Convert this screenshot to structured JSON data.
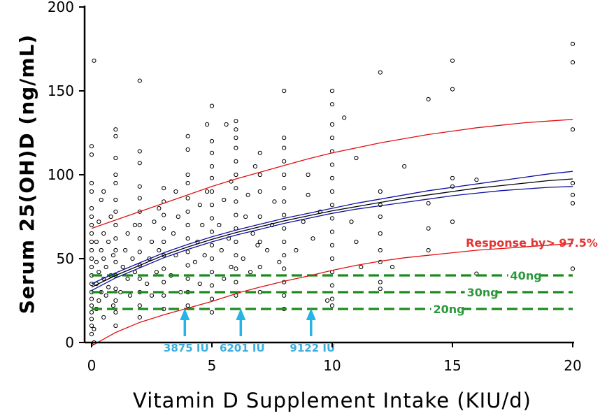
{
  "chart_data": {
    "type": "scatter",
    "xlabel": "Vitamin D Supplement Intake (KIU/d)",
    "ylabel": "Serum 25(OH)D (ng/mL)",
    "xlim": [
      0,
      20
    ],
    "ylim": [
      0,
      200
    ],
    "x_ticks": [
      0,
      5,
      10,
      15,
      20
    ],
    "y_ticks": [
      0,
      50,
      100,
      150,
      200
    ],
    "colors": {
      "points": "#000000",
      "fit": "#000000",
      "confidence": "#1010a0",
      "prediction": "#e01010",
      "threshold": "#1e8a1e",
      "arrows": "#26b4e6",
      "iu_text": "#3aaee0",
      "ng_text": "#2b9a3b",
      "response_text": "#e53232"
    },
    "series": [
      {
        "name": "Fitted mean response",
        "kind": "line",
        "x": [
          0,
          1,
          2,
          3,
          4,
          5,
          6,
          7,
          8,
          9,
          10,
          11,
          12,
          13,
          14,
          15,
          16,
          17,
          18,
          19,
          20
        ],
        "y": [
          33,
          40,
          46,
          52,
          57,
          61.5,
          65.5,
          69,
          72.5,
          75.5,
          78.5,
          81,
          83.5,
          86,
          88,
          90,
          92,
          93.5,
          95,
          96.5,
          97.5
        ]
      },
      {
        "name": "Upper confidence limit",
        "kind": "line",
        "x": [
          0,
          1,
          2,
          3,
          4,
          5,
          6,
          7,
          8,
          9,
          10,
          11,
          12,
          13,
          14,
          15,
          16,
          17,
          18,
          19,
          20
        ],
        "y": [
          35,
          41.5,
          47.5,
          53.5,
          58.5,
          63,
          67,
          70.5,
          74,
          77,
          80,
          83,
          85.5,
          88,
          90.5,
          92.5,
          94.5,
          96.5,
          98.5,
          100.5,
          102
        ]
      },
      {
        "name": "Lower confidence limit",
        "kind": "line",
        "x": [
          0,
          1,
          2,
          3,
          4,
          5,
          6,
          7,
          8,
          9,
          10,
          11,
          12,
          13,
          14,
          15,
          16,
          17,
          18,
          19,
          20
        ],
        "y": [
          31,
          38.5,
          44.5,
          50.5,
          55.5,
          60,
          64,
          67.5,
          71,
          74,
          77,
          79.5,
          81.5,
          83.5,
          85.5,
          87.5,
          89,
          90.5,
          91.5,
          92.5,
          93
        ]
      },
      {
        "name": "Upper prediction limit",
        "kind": "line",
        "x": [
          0,
          1,
          2,
          3,
          4,
          5,
          6,
          7,
          8,
          9,
          10,
          11,
          12,
          13,
          14,
          15,
          16,
          17,
          18,
          19,
          20
        ],
        "y": [
          68,
          73,
          78,
          83,
          88,
          93,
          97.5,
          101.5,
          105.5,
          109.5,
          113,
          116,
          119,
          121.5,
          124,
          126,
          128,
          129.5,
          131,
          132,
          133
        ]
      },
      {
        "name": "Lower prediction limit (Response by > 97.5%)",
        "kind": "line",
        "x": [
          0,
          1,
          2,
          3,
          3.875,
          5,
          6.201,
          7,
          8,
          9.122,
          10,
          11,
          12,
          13,
          14,
          15,
          16,
          17,
          18,
          19,
          20
        ],
        "y": [
          -2,
          6,
          12,
          16.5,
          20,
          24.5,
          30,
          33,
          36.5,
          40,
          43,
          46,
          48.5,
          50.5,
          52,
          53.5,
          55,
          56,
          57,
          58,
          59
        ]
      },
      {
        "name": "Observed serum 25(OH)D",
        "kind": "scatter",
        "points": [
          [
            0,
            5
          ],
          [
            0,
            10
          ],
          [
            0,
            14
          ],
          [
            0,
            18
          ],
          [
            0,
            22
          ],
          [
            0,
            26
          ],
          [
            0,
            30
          ],
          [
            0,
            35
          ],
          [
            0,
            40
          ],
          [
            0,
            45
          ],
          [
            0,
            50
          ],
          [
            0,
            55
          ],
          [
            0,
            60
          ],
          [
            0,
            65
          ],
          [
            0,
            70
          ],
          [
            0,
            75
          ],
          [
            0,
            80
          ],
          [
            0,
            90
          ],
          [
            0,
            95
          ],
          [
            0,
            112
          ],
          [
            0,
            117
          ],
          [
            0.1,
            168
          ],
          [
            0.1,
            8
          ],
          [
            0.1,
            0
          ],
          [
            0.2,
            20
          ],
          [
            0.2,
            35
          ],
          [
            0.2,
            48
          ],
          [
            0.2,
            60
          ],
          [
            0.3,
            25
          ],
          [
            0.3,
            42
          ],
          [
            0.3,
            72
          ],
          [
            0.4,
            30
          ],
          [
            0.4,
            55
          ],
          [
            0.4,
            85
          ],
          [
            0.5,
            15
          ],
          [
            0.5,
            38
          ],
          [
            0.5,
            50
          ],
          [
            0.5,
            65
          ],
          [
            0.5,
            90
          ],
          [
            0.6,
            28
          ],
          [
            0.6,
            45
          ],
          [
            0.7,
            33
          ],
          [
            0.7,
            60
          ],
          [
            0.8,
            40
          ],
          [
            0.8,
            75
          ],
          [
            0.9,
            22
          ],
          [
            0.9,
            52
          ],
          [
            1,
            10
          ],
          [
            1,
            18
          ],
          [
            1,
            25
          ],
          [
            1,
            32
          ],
          [
            1,
            40
          ],
          [
            1,
            48
          ],
          [
            1,
            55
          ],
          [
            1,
            62
          ],
          [
            1,
            70
          ],
          [
            1,
            78
          ],
          [
            1,
            85
          ],
          [
            1,
            95
          ],
          [
            1,
            100
          ],
          [
            1,
            110
          ],
          [
            1,
            123
          ],
          [
            1,
            127
          ],
          [
            1.2,
            30
          ],
          [
            1.3,
            45
          ],
          [
            1.4,
            55
          ],
          [
            1.5,
            38
          ],
          [
            1.5,
            65
          ],
          [
            1.6,
            28
          ],
          [
            1.7,
            50
          ],
          [
            1.8,
            42
          ],
          [
            1.8,
            70
          ],
          [
            2,
            15
          ],
          [
            2,
            22
          ],
          [
            2,
            30
          ],
          [
            2,
            38
          ],
          [
            2,
            46
          ],
          [
            2,
            54
          ],
          [
            2,
            62
          ],
          [
            2,
            70
          ],
          [
            2,
            78
          ],
          [
            2,
            86
          ],
          [
            2,
            93
          ],
          [
            2,
            107
          ],
          [
            2,
            114
          ],
          [
            2,
            156
          ],
          [
            2.3,
            35
          ],
          [
            2.4,
            50
          ],
          [
            2.5,
            28
          ],
          [
            2.5,
            60
          ],
          [
            2.6,
            72
          ],
          [
            2.7,
            42
          ],
          [
            2.8,
            55
          ],
          [
            2.8,
            80
          ],
          [
            3,
            20
          ],
          [
            3,
            28
          ],
          [
            3,
            36
          ],
          [
            3,
            44
          ],
          [
            3,
            52
          ],
          [
            3,
            60
          ],
          [
            3,
            68
          ],
          [
            3,
            76
          ],
          [
            3,
            84
          ],
          [
            3,
            92
          ],
          [
            3.3,
            40
          ],
          [
            3.4,
            65
          ],
          [
            3.5,
            52
          ],
          [
            3.5,
            90
          ],
          [
            3.6,
            75
          ],
          [
            3.7,
            30
          ],
          [
            4,
            22
          ],
          [
            4,
            30
          ],
          [
            4,
            38
          ],
          [
            4,
            46
          ],
          [
            4,
            54
          ],
          [
            4,
            62
          ],
          [
            4,
            70
          ],
          [
            4,
            78
          ],
          [
            4,
            86
          ],
          [
            4,
            95
          ],
          [
            4,
            100
          ],
          [
            4,
            115
          ],
          [
            4,
            123
          ],
          [
            4.3,
            48
          ],
          [
            4.4,
            60
          ],
          [
            4.5,
            35
          ],
          [
            4.5,
            82
          ],
          [
            4.6,
            70
          ],
          [
            4.7,
            52
          ],
          [
            4.8,
            90
          ],
          [
            4.8,
            130
          ],
          [
            5,
            18
          ],
          [
            5,
            26
          ],
          [
            5,
            34
          ],
          [
            5,
            42
          ],
          [
            5,
            50
          ],
          [
            5,
            58
          ],
          [
            5,
            66
          ],
          [
            5,
            74
          ],
          [
            5,
            82
          ],
          [
            5,
            90
          ],
          [
            5,
            98
          ],
          [
            5,
            105
          ],
          [
            5,
            113
          ],
          [
            5,
            120
          ],
          [
            5,
            141
          ],
          [
            5.3,
            70
          ],
          [
            5.4,
            55
          ],
          [
            5.5,
            38
          ],
          [
            5.5,
            85
          ],
          [
            5.6,
            130
          ],
          [
            5.7,
            62
          ],
          [
            5.8,
            96
          ],
          [
            5.8,
            45
          ],
          [
            6,
            28
          ],
          [
            6,
            36
          ],
          [
            6,
            44
          ],
          [
            6,
            52
          ],
          [
            6,
            60
          ],
          [
            6,
            68
          ],
          [
            6,
            76
          ],
          [
            6,
            84
          ],
          [
            6,
            92
          ],
          [
            6,
            100
          ],
          [
            6,
            108
          ],
          [
            6,
            116
          ],
          [
            6,
            122
          ],
          [
            6,
            127
          ],
          [
            6,
            132
          ],
          [
            6.3,
            50
          ],
          [
            6.4,
            75
          ],
          [
            6.5,
            88
          ],
          [
            6.6,
            42
          ],
          [
            6.7,
            65
          ],
          [
            6.8,
            105
          ],
          [
            6.9,
            58
          ],
          [
            7,
            30
          ],
          [
            7,
            45
          ],
          [
            7,
            60
          ],
          [
            7,
            75
          ],
          [
            7,
            90
          ],
          [
            7,
            100
          ],
          [
            7,
            113
          ],
          [
            7.3,
            55
          ],
          [
            7.5,
            70
          ],
          [
            7.6,
            84
          ],
          [
            7.8,
            48
          ],
          [
            8,
            20
          ],
          [
            8,
            28
          ],
          [
            8,
            36
          ],
          [
            8,
            44
          ],
          [
            8,
            52
          ],
          [
            8,
            60
          ],
          [
            8,
            68
          ],
          [
            8,
            76
          ],
          [
            8,
            84
          ],
          [
            8,
            92
          ],
          [
            8,
            100
          ],
          [
            8,
            108
          ],
          [
            8,
            116
          ],
          [
            8,
            122
          ],
          [
            8,
            150
          ],
          [
            8.5,
            55
          ],
          [
            8.8,
            72
          ],
          [
            9,
            88
          ],
          [
            9,
            100
          ],
          [
            9.2,
            62
          ],
          [
            9.5,
            78
          ],
          [
            9.8,
            25
          ],
          [
            10,
            22
          ],
          [
            10,
            26
          ],
          [
            10,
            34
          ],
          [
            10,
            42
          ],
          [
            10,
            50
          ],
          [
            10,
            58
          ],
          [
            10,
            66
          ],
          [
            10,
            74
          ],
          [
            10,
            82
          ],
          [
            10,
            90
          ],
          [
            10,
            98
          ],
          [
            10,
            106
          ],
          [
            10,
            114
          ],
          [
            10,
            122
          ],
          [
            10,
            130
          ],
          [
            10,
            142
          ],
          [
            10,
            150
          ],
          [
            10.5,
            134
          ],
          [
            10.8,
            72
          ],
          [
            11,
            110
          ],
          [
            11,
            60
          ],
          [
            11.2,
            45
          ],
          [
            12,
            32
          ],
          [
            12,
            36
          ],
          [
            12,
            48
          ],
          [
            12,
            55
          ],
          [
            12,
            65
          ],
          [
            12,
            75
          ],
          [
            12,
            82
          ],
          [
            12,
            90
          ],
          [
            12,
            161
          ],
          [
            12.5,
            45
          ],
          [
            13,
            105
          ],
          [
            14,
            55
          ],
          [
            14,
            68
          ],
          [
            14,
            83
          ],
          [
            14,
            145
          ],
          [
            15,
            72
          ],
          [
            15,
            93
          ],
          [
            15,
            98
          ],
          [
            15,
            151
          ],
          [
            15,
            168
          ],
          [
            16,
            41
          ],
          [
            16,
            97
          ],
          [
            20,
            44
          ],
          [
            20,
            83
          ],
          [
            20,
            88
          ],
          [
            20,
            95
          ],
          [
            20,
            127
          ],
          [
            20,
            167
          ],
          [
            20,
            178
          ]
        ]
      }
    ],
    "thresholds": [
      {
        "y": 40,
        "label": "40ng",
        "label_x": 17.4
      },
      {
        "y": 30,
        "label": "30ng",
        "label_x": 15.6
      },
      {
        "y": 20,
        "label": "20ng",
        "label_x": 14.2
      }
    ],
    "arrows": [
      {
        "x": 3.875,
        "label": "3875 IU"
      },
      {
        "x": 6.201,
        "label": "6201 IU"
      },
      {
        "x": 9.122,
        "label": "9122 IU"
      }
    ],
    "annotations": [
      {
        "text": "Response by> 97.5%",
        "x": 18.3,
        "y": 57
      }
    ]
  }
}
